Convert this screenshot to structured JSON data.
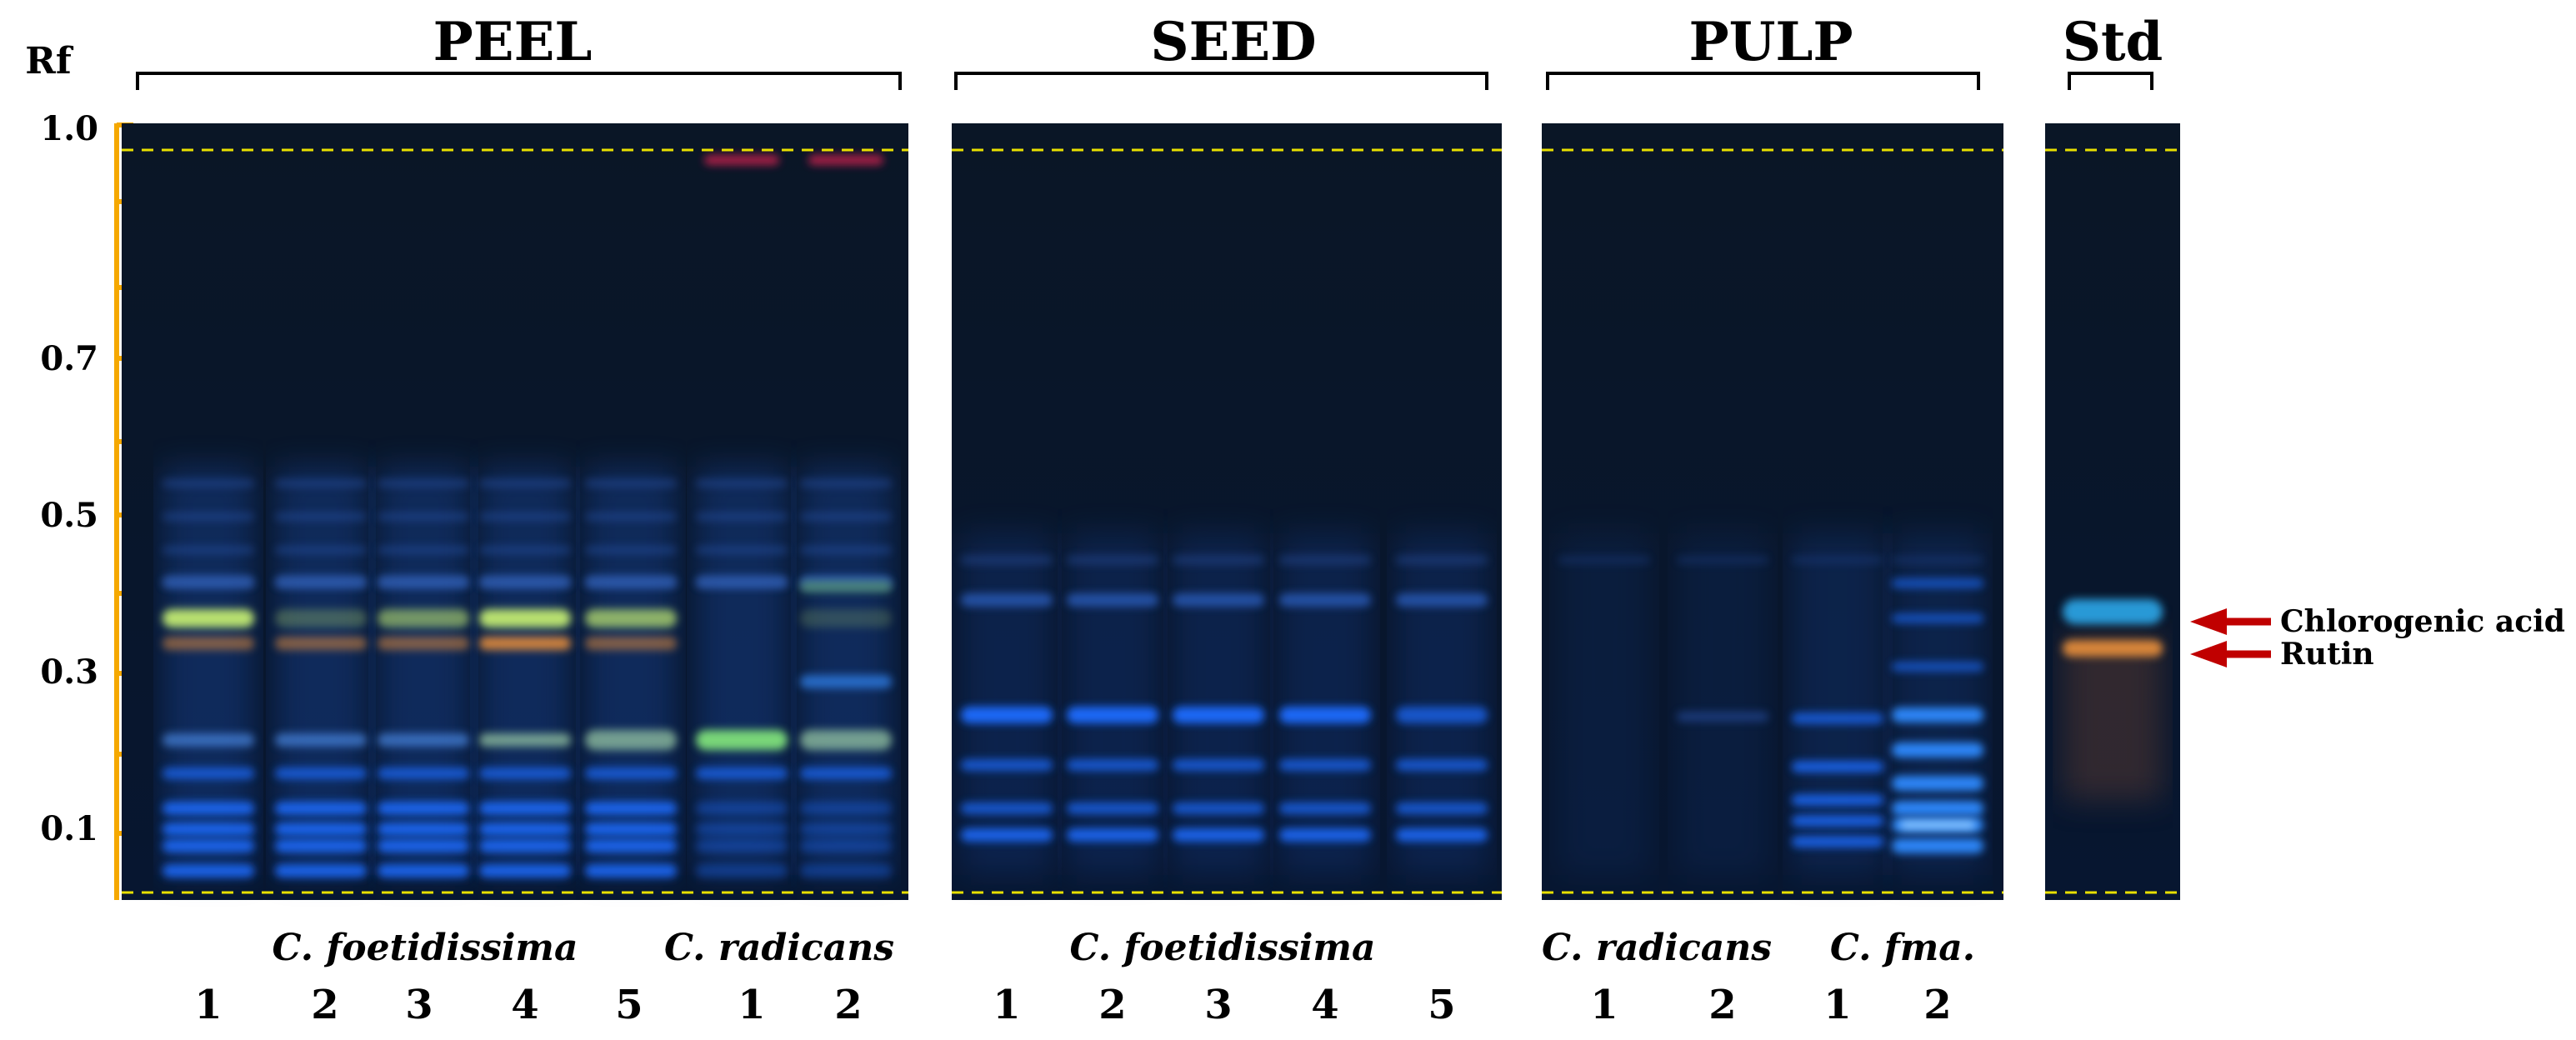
{
  "axis": {
    "label": "Rf",
    "ticks": [
      "1.0",
      "0.7",
      "0.5",
      "0.3",
      "0.1"
    ]
  },
  "sections": {
    "peel": "PEEL",
    "seed": "SEED",
    "pulp": "PULP",
    "std": "Std"
  },
  "species": {
    "peel_a": "C. foetidissima",
    "peel_b": "C. radicans",
    "seed_a": "C. foetidissima",
    "pulp_a": "C. radicans",
    "pulp_b": "C. fma."
  },
  "lanes": {
    "peel": [
      "1",
      "2",
      "3",
      "4",
      "5",
      "1",
      "2"
    ],
    "seed": [
      "1",
      "2",
      "3",
      "4",
      "5"
    ],
    "pulp": [
      "1",
      "2",
      "1",
      "2"
    ]
  },
  "annotations": {
    "chlorogenic": "Chlorogenic acid",
    "rutin": "Rutin"
  },
  "colors": {
    "plate_background": "#071426",
    "solvent_front_line": "#e8e000",
    "axis_line": "#f5a800",
    "arrow": "#c00000",
    "band_blue": "#1e6cff",
    "band_green": "#b8e070",
    "band_orange": "#e08a3a",
    "band_cyan": "#2aa0e0"
  }
}
